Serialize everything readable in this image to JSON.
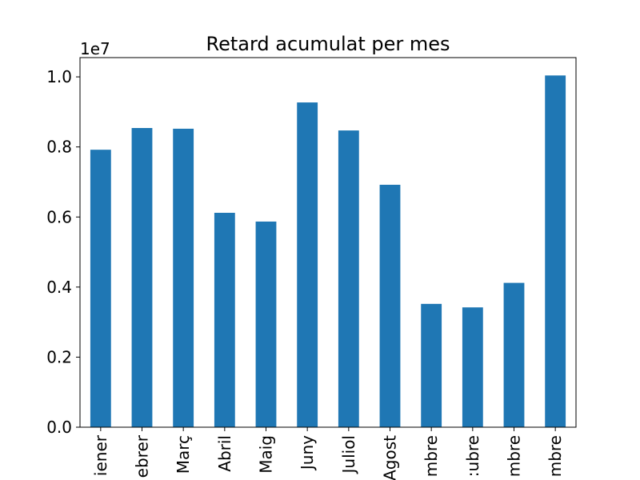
{
  "chart_data": {
    "type": "bar",
    "title": "Retard acumulat per mes",
    "xlabel": "",
    "ylabel": "",
    "offset_label": "1e7",
    "categories": [
      "Gener",
      "Febrer",
      "Març",
      "Abril",
      "Maig",
      "Juny",
      "Juliol",
      "Agost",
      "Setembre",
      "Octubre",
      "Novembre",
      "Desembre"
    ],
    "visible_category_labels": [
      "iener",
      "ebrer",
      "Març",
      "Abril",
      "Maig",
      "Juny",
      "Juliol",
      "Agost",
      "mbre",
      ":ubre",
      "mbre",
      "mbre"
    ],
    "values": [
      7920000,
      8540000,
      8520000,
      6120000,
      5870000,
      9270000,
      8470000,
      6920000,
      3520000,
      3420000,
      4120000,
      10040000
    ],
    "ylim": [
      0,
      10550000
    ],
    "yticks": [
      0,
      2000000,
      4000000,
      6000000,
      8000000,
      10000000
    ],
    "ytick_labels": [
      "0.0",
      "0.2",
      "0.4",
      "0.6",
      "0.8",
      "1.0"
    ],
    "grid": false,
    "legend": "none",
    "bar_color": "#1f77b4"
  }
}
